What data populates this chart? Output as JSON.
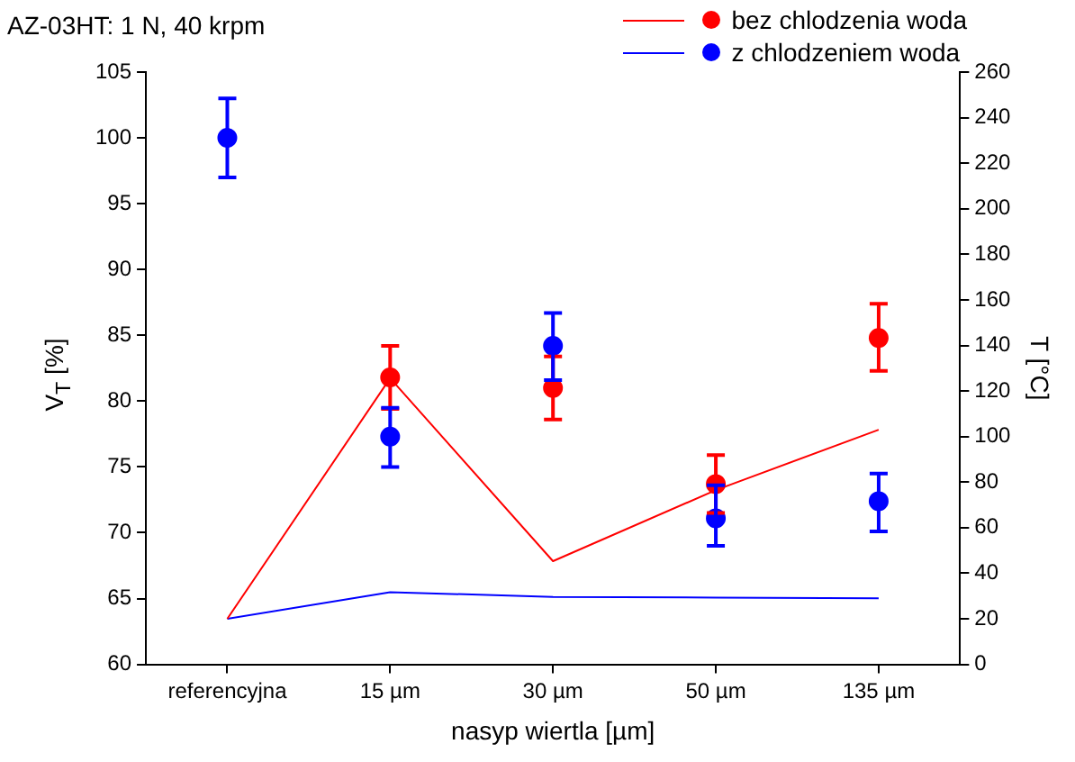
{
  "chart_data": {
    "type": "scatter",
    "title": "AZ-03HT: 1 N, 40 krpm",
    "xlabel": "nasyp wiertla [µm]",
    "ylabel": "V$_{T}$ [%]",
    "y2label": "T [°C]",
    "categories": [
      "referencyjna",
      "15 µm",
      "30 µm",
      "50 µm",
      "135 µm"
    ],
    "series": [
      {
        "name": "bez chlodzenia woda",
        "color": "#ff0000",
        "values": [
          null,
          81.8,
          81.0,
          73.7,
          84.8
        ],
        "errors": [
          null,
          [
            79.4,
            84.2
          ],
          [
            78.6,
            83.4
          ],
          [
            71.5,
            75.9
          ],
          [
            82.3,
            87.4
          ]
        ]
      },
      {
        "name": "z chlodzeniem woda",
        "color": "#0000ff",
        "values": [
          100,
          77.3,
          84.2,
          71.1,
          72.4
        ],
        "errors": [
          [
            97,
            103
          ],
          [
            75.0,
            79.5
          ],
          [
            81.6,
            86.7
          ],
          [
            69.0,
            73.6
          ],
          [
            70.1,
            74.5
          ]
        ]
      },
      {
        "type": "line",
        "marker": "none",
        "axis": "y2",
        "color": "#ff0000",
        "values": [
          20,
          125.6,
          45.3,
          76.5,
          103
        ]
      },
      {
        "type": "line",
        "marker": "none",
        "axis": "y2",
        "color": "#0000ff",
        "values": [
          20,
          31.7,
          29.6,
          29.3,
          29
        ]
      }
    ],
    "ylim": [
      60,
      105
    ],
    "yticks": [
      60,
      65,
      70,
      75,
      80,
      85,
      90,
      95,
      100,
      105
    ],
    "y2lim": [
      0,
      260
    ],
    "y2ticks": [
      0,
      20,
      40,
      60,
      80,
      100,
      120,
      140,
      160,
      180,
      200,
      220,
      240,
      260
    ],
    "marker": "circle",
    "line_style": "solid",
    "legend": "top right",
    "grid": false
  }
}
